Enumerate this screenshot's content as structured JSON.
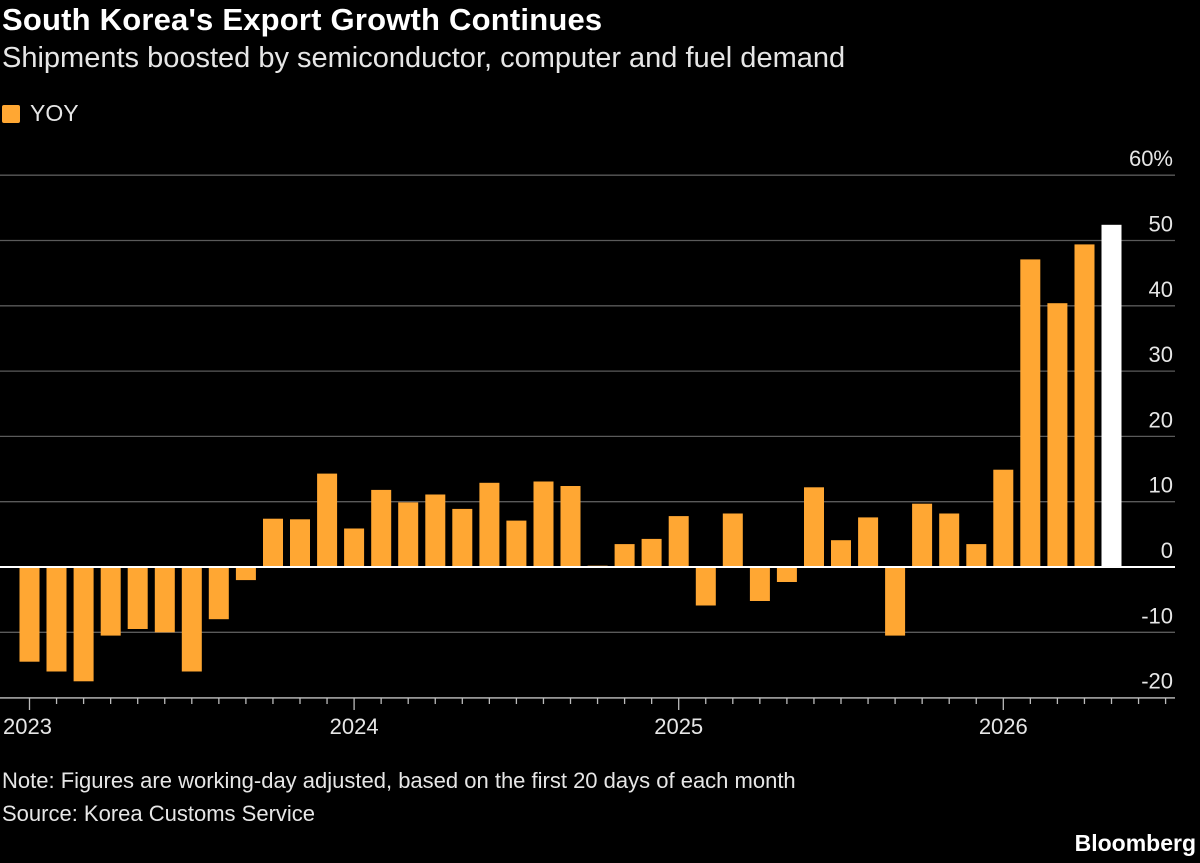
{
  "header": {
    "title": "South Korea's Export Growth Continues",
    "subtitle": "Shipments boosted by semiconductor, computer and fuel demand"
  },
  "footer": {
    "note": "Note: Figures are working-day adjusted, based on the first 20 days of each month",
    "source": "Source: Korea Customs Service",
    "brand": "Bloomberg"
  },
  "colors": {
    "bar": "#ffa733",
    "highlight": "#ffffff",
    "grid": "#5a5a5a",
    "zero_line": "#ffffff",
    "background": "#000000"
  },
  "chart_data": {
    "type": "bar",
    "title": "South Korea's Export Growth Continues",
    "subtitle": "Shipments boosted by semiconductor, computer and fuel demand",
    "xlabel": "",
    "ylabel": "",
    "y_axis_position": "right",
    "ylim": [
      -20,
      60
    ],
    "y_ticks": [
      {
        "value": 60,
        "label": "60%"
      },
      {
        "value": 50,
        "label": "50"
      },
      {
        "value": 40,
        "label": "40"
      },
      {
        "value": 30,
        "label": "30"
      },
      {
        "value": 20,
        "label": "20"
      },
      {
        "value": 10,
        "label": "10"
      },
      {
        "value": 0,
        "label": "0"
      },
      {
        "value": -10,
        "label": "-10"
      },
      {
        "value": -20,
        "label": "-20"
      }
    ],
    "x_major_labels": [
      {
        "label": "2023",
        "month_index": 0
      },
      {
        "label": "2024",
        "month_index": 12
      },
      {
        "label": "2025",
        "month_index": 24
      },
      {
        "label": "2026",
        "month_index": 36
      }
    ],
    "legend": [
      {
        "name": "YOY",
        "color": "#ffa733"
      }
    ],
    "legend_position": "top-left",
    "grid": true,
    "series": [
      {
        "name": "YOY",
        "x": [
          "2023-01",
          "2023-02",
          "2023-03",
          "2023-04",
          "2023-05",
          "2023-06",
          "2023-07",
          "2023-08",
          "2023-09",
          "2023-10",
          "2023-11",
          "2023-12",
          "2024-01",
          "2024-02",
          "2024-03",
          "2024-04",
          "2024-05",
          "2024-06",
          "2024-07",
          "2024-08",
          "2024-09",
          "2024-10",
          "2024-11",
          "2024-12",
          "2025-01",
          "2025-02",
          "2025-03",
          "2025-04",
          "2025-05",
          "2025-06",
          "2025-07",
          "2025-08",
          "2025-09",
          "2025-10",
          "2025-11",
          "2025-12",
          "2026-01",
          "2026-02",
          "2026-03",
          "2026-04",
          "2026-05"
        ],
        "values": [
          -14.5,
          -16,
          -17.5,
          -10.5,
          -9.5,
          -10,
          -16,
          -8,
          -2,
          7.4,
          7.3,
          14.3,
          5.9,
          11.8,
          9.9,
          11.1,
          8.9,
          12.9,
          7.1,
          13.1,
          12.4,
          0.2,
          3.5,
          4.3,
          7.8,
          -5.9,
          8.2,
          -5.2,
          -2.3,
          12.2,
          4.1,
          7.6,
          -10.5,
          9.7,
          8.2,
          3.5,
          14.9,
          47.1,
          40.4,
          49.4,
          52.4
        ],
        "highlight_index": 40
      }
    ]
  }
}
